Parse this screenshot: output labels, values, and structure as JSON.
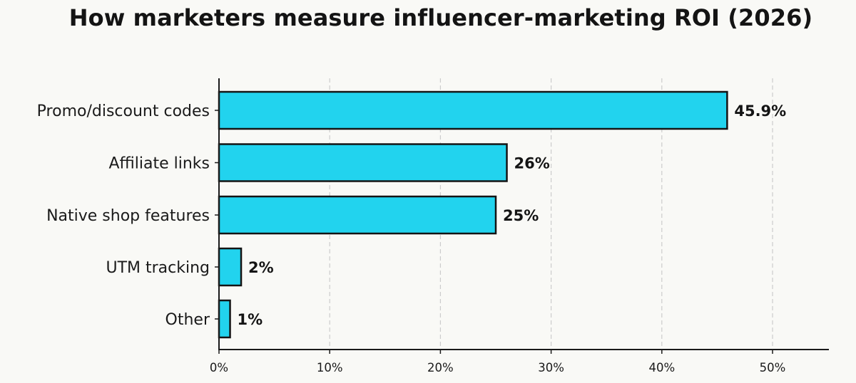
{
  "title": "How marketers measure influencer-marketing ROI (2026)",
  "colors": {
    "bar": "#22d3ee",
    "bar_edge": "#141414",
    "grid": "#cccccc",
    "background": "#f9f9f6"
  },
  "chart_data": {
    "type": "bar",
    "orientation": "horizontal",
    "title": "How marketers measure influencer-marketing ROI (2026)",
    "xlabel": "",
    "ylabel": "",
    "categories": [
      "Promo/discount codes",
      "Affiliate links",
      "Native shop features",
      "UTM tracking",
      "Other"
    ],
    "values": [
      45.9,
      26,
      25,
      2,
      1
    ],
    "value_labels": [
      "45.9%",
      "26%",
      "25%",
      "2%",
      "1%"
    ],
    "xlim": [
      0,
      55
    ],
    "xticks": [
      0,
      10,
      20,
      30,
      40,
      50
    ],
    "xtick_labels": [
      "0%",
      "10%",
      "20%",
      "30%",
      "40%",
      "50%"
    ],
    "grid": {
      "x": true,
      "style": "dashed"
    },
    "legend": null
  }
}
